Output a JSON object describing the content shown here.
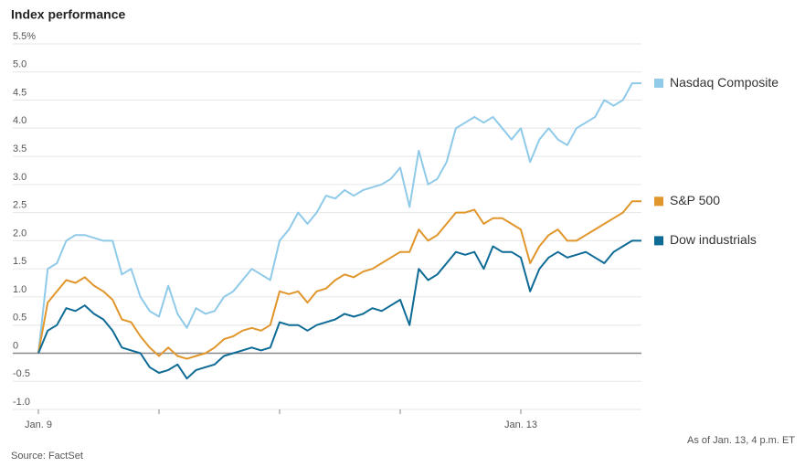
{
  "chart_data": {
    "type": "line",
    "title": "Index performance",
    "source": "Source: FactSet",
    "note": "As of Jan. 13, 4 p.m. ET",
    "days": [
      "Jan. 9",
      null,
      null,
      null,
      "Jan. 13"
    ],
    "ylim": [
      -1,
      5.5
    ],
    "yticks": [
      {
        "value": -1,
        "label": "-1.0"
      },
      -0.5,
      0,
      0.5,
      {
        "value": 1,
        "label": "1.0"
      },
      1.5,
      {
        "value": 2,
        "label": "2.0"
      },
      2.5,
      {
        "value": 3,
        "label": "3.0"
      },
      3.5,
      {
        "value": 4,
        "label": "4.0"
      },
      4.5,
      {
        "value": 5,
        "label": "5.0"
      },
      {
        "value": 5.5,
        "label": "5.5%"
      }
    ],
    "grid": true,
    "series": [
      {
        "name": "Nasdaq Composite",
        "color": "#8fcae9",
        "values": [
          0,
          1.5,
          1.6,
          2.0,
          2.1,
          2.1,
          2.05,
          2.0,
          2.0,
          1.4,
          1.5,
          1.0,
          0.75,
          0.65,
          1.2,
          0.7,
          0.45,
          0.8,
          0.7,
          0.75,
          1.0,
          1.1,
          1.3,
          1.5,
          1.4,
          1.3,
          2.0,
          2.2,
          2.5,
          2.3,
          2.5,
          2.8,
          2.75,
          2.9,
          2.8,
          2.9,
          2.95,
          3.0,
          3.1,
          3.3,
          2.6,
          3.6,
          3.0,
          3.1,
          3.4,
          4.0,
          4.1,
          4.2,
          4.1,
          4.2,
          4.0,
          3.8,
          4.0,
          3.4,
          3.8,
          4.0,
          3.8,
          3.7,
          4.0,
          4.1,
          4.2,
          4.5,
          4.4,
          4.5,
          4.8,
          4.8
        ]
      },
      {
        "name": "S&P 500",
        "color": "#e0962a",
        "values": [
          0,
          0.9,
          1.1,
          1.3,
          1.25,
          1.35,
          1.2,
          1.1,
          0.95,
          0.6,
          0.55,
          0.3,
          0.1,
          -0.05,
          0.1,
          -0.05,
          -0.1,
          -0.05,
          0.0,
          0.1,
          0.25,
          0.3,
          0.4,
          0.45,
          0.4,
          0.5,
          1.1,
          1.05,
          1.1,
          0.9,
          1.1,
          1.15,
          1.3,
          1.4,
          1.35,
          1.45,
          1.5,
          1.6,
          1.7,
          1.8,
          1.8,
          2.2,
          2.0,
          2.1,
          2.3,
          2.5,
          2.5,
          2.55,
          2.3,
          2.4,
          2.4,
          2.3,
          2.2,
          1.6,
          1.9,
          2.1,
          2.2,
          2.0,
          2.0,
          2.1,
          2.2,
          2.3,
          2.4,
          2.5,
          2.7,
          2.7
        ]
      },
      {
        "name": "Dow industrials",
        "color": "#0e6b96",
        "values": [
          0,
          0.4,
          0.5,
          0.8,
          0.75,
          0.85,
          0.7,
          0.6,
          0.4,
          0.1,
          0.05,
          0.0,
          -0.25,
          -0.35,
          -0.3,
          -0.2,
          -0.45,
          -0.3,
          -0.25,
          -0.2,
          -0.05,
          0.0,
          0.05,
          0.1,
          0.05,
          0.1,
          0.55,
          0.5,
          0.5,
          0.4,
          0.5,
          0.55,
          0.6,
          0.7,
          0.65,
          0.7,
          0.8,
          0.75,
          0.85,
          0.95,
          0.5,
          1.5,
          1.3,
          1.4,
          1.6,
          1.8,
          1.75,
          1.8,
          1.5,
          1.9,
          1.8,
          1.8,
          1.7,
          1.1,
          1.5,
          1.7,
          1.8,
          1.7,
          1.75,
          1.8,
          1.7,
          1.6,
          1.8,
          1.9,
          2.0,
          2.0
        ]
      }
    ]
  }
}
